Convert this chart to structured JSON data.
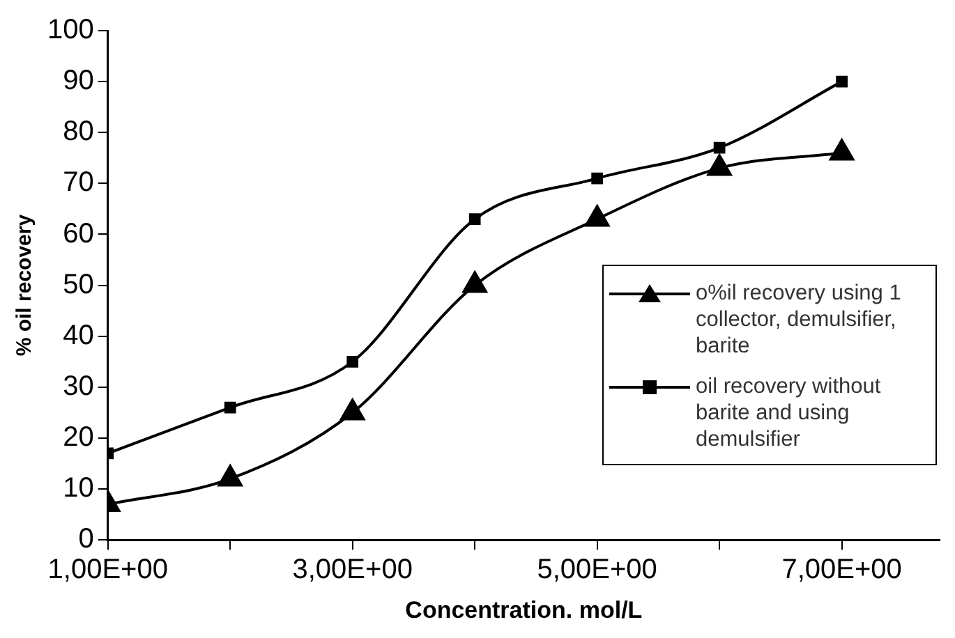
{
  "chart_data": {
    "type": "line",
    "xlabel": "Concentration. mol/L",
    "ylabel": "% oil recovery",
    "categories": [
      "1,00E+00",
      null,
      "3,00E+00",
      null,
      "5,00E+00",
      null,
      "7,00E+00"
    ],
    "ylim": [
      0,
      100
    ],
    "yticks": [
      0,
      10,
      20,
      30,
      40,
      50,
      60,
      70,
      80,
      90,
      100
    ],
    "series": [
      {
        "name": "o%il recovery using 1 collector, demulsifier, barite",
        "color": "#000000",
        "marker": "triangle",
        "values": [
          7,
          12,
          25,
          50,
          63,
          73,
          76
        ]
      },
      {
        "name": "oil recovery without barite and using demulsifier",
        "color": "#000000",
        "marker": "square",
        "values": [
          17,
          26,
          35,
          63,
          71,
          77,
          90
        ]
      }
    ],
    "grid": false,
    "legend": "bottom right",
    "line_style": "solid"
  }
}
